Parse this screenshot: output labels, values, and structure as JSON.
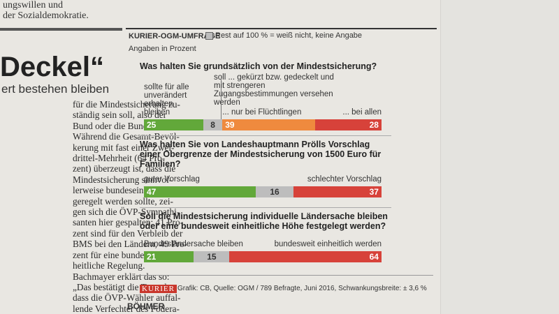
{
  "article": {
    "top_lines": [
      "ungswillen und",
      "der Sozialdemokratie."
    ],
    "headline": "Deckel“",
    "subhead": "ert bestehen bleiben",
    "body": [
      "für die Mindestsicherung zu-",
      "ständig sein soll, also der",
      "Bund oder die Bundesländer.",
      "Während die Gesamt-Bevöl-",
      "kerung mit fast einer Zwei-",
      "drittel-Mehrheit (64 Pro-",
      "zent) überzeugt ist, dass die",
      "Mindestsicherung sinnvol-",
      "lerweise bundeseinheitlich",
      "geregelt werden sollte, zei-",
      "gen sich die ÖVP-Sympathi-",
      "santen hier gespalten: 41 Pro-",
      "zent sind für den Verbleib der",
      "BMS bei den Ländern, 49 Pro-",
      "zent für eine bundesweit ein-",
      "heitliche Regelung.",
      "Bachmayer erklärt das so:",
      "„Das bestätigt die Tatsache,",
      "dass die ÖVP-Wähler auffal-",
      "lende Verfechter des Födera-"
    ],
    "byline": "BÖHMER"
  },
  "graphic": {
    "kicker": "KURIER-OGM-UMFRAGE",
    "legend_note": "Rest auf 100 % = weiß nicht, keine Angabe",
    "unit_note": "Angaben in Prozent",
    "logo": "KURIER",
    "source": "Grafik: CB, Quelle: OGM / 789 Befragte, Juni 2016, Schwankungsbreite: ± 3,6 %"
  },
  "chart_data": [
    {
      "type": "stacked_bar",
      "title": "Was halten Sie grundsätzlich von der Mindestsicherung?",
      "group_label": "soll ... gekürzt bzw. gedeckelt und mit strengeren Zugangsbestimmungen versehen werden",
      "xlim": [
        0,
        100
      ],
      "series": [
        {
          "name": "sollte für alle unverändert erhalten bleiben",
          "color": "#62a83a",
          "values": [
            25
          ]
        },
        {
          "color": "#bdbdbd",
          "values": [
            8
          ]
        },
        {
          "name": "... nur bei Flüchtlingen",
          "color": "#ef8a3e",
          "values": [
            39
          ]
        },
        {
          "name": "... bei allen",
          "color": "#d7423a",
          "values": [
            28
          ]
        }
      ]
    },
    {
      "type": "stacked_bar",
      "title": "Was halten Sie von Landeshauptmann Prölls Vorschlag einer Obergrenze der Mindestsicherung von 1500 Euro für Familien?",
      "xlim": [
        0,
        100
      ],
      "series": [
        {
          "name": "guter Vorschlag",
          "color": "#62a83a",
          "values": [
            47
          ]
        },
        {
          "color": "#bdbdbd",
          "values": [
            16
          ]
        },
        {
          "name": "schlechter Vorschlag",
          "color": "#d7423a",
          "values": [
            37
          ]
        }
      ]
    },
    {
      "type": "stacked_bar",
      "title": "Soll die Mindestsicherung individuelle Ländersache bleiben oder eine bundesweit einheitliche Höhe festgelegt werden?",
      "xlim": [
        0,
        100
      ],
      "series": [
        {
          "name": "Bundesländersache bleiben",
          "color": "#62a83a",
          "values": [
            21
          ]
        },
        {
          "color": "#bdbdbd",
          "values": [
            15
          ]
        },
        {
          "name": "bundesweit einheitlich werden",
          "color": "#d7423a",
          "values": [
            64
          ]
        }
      ]
    }
  ]
}
